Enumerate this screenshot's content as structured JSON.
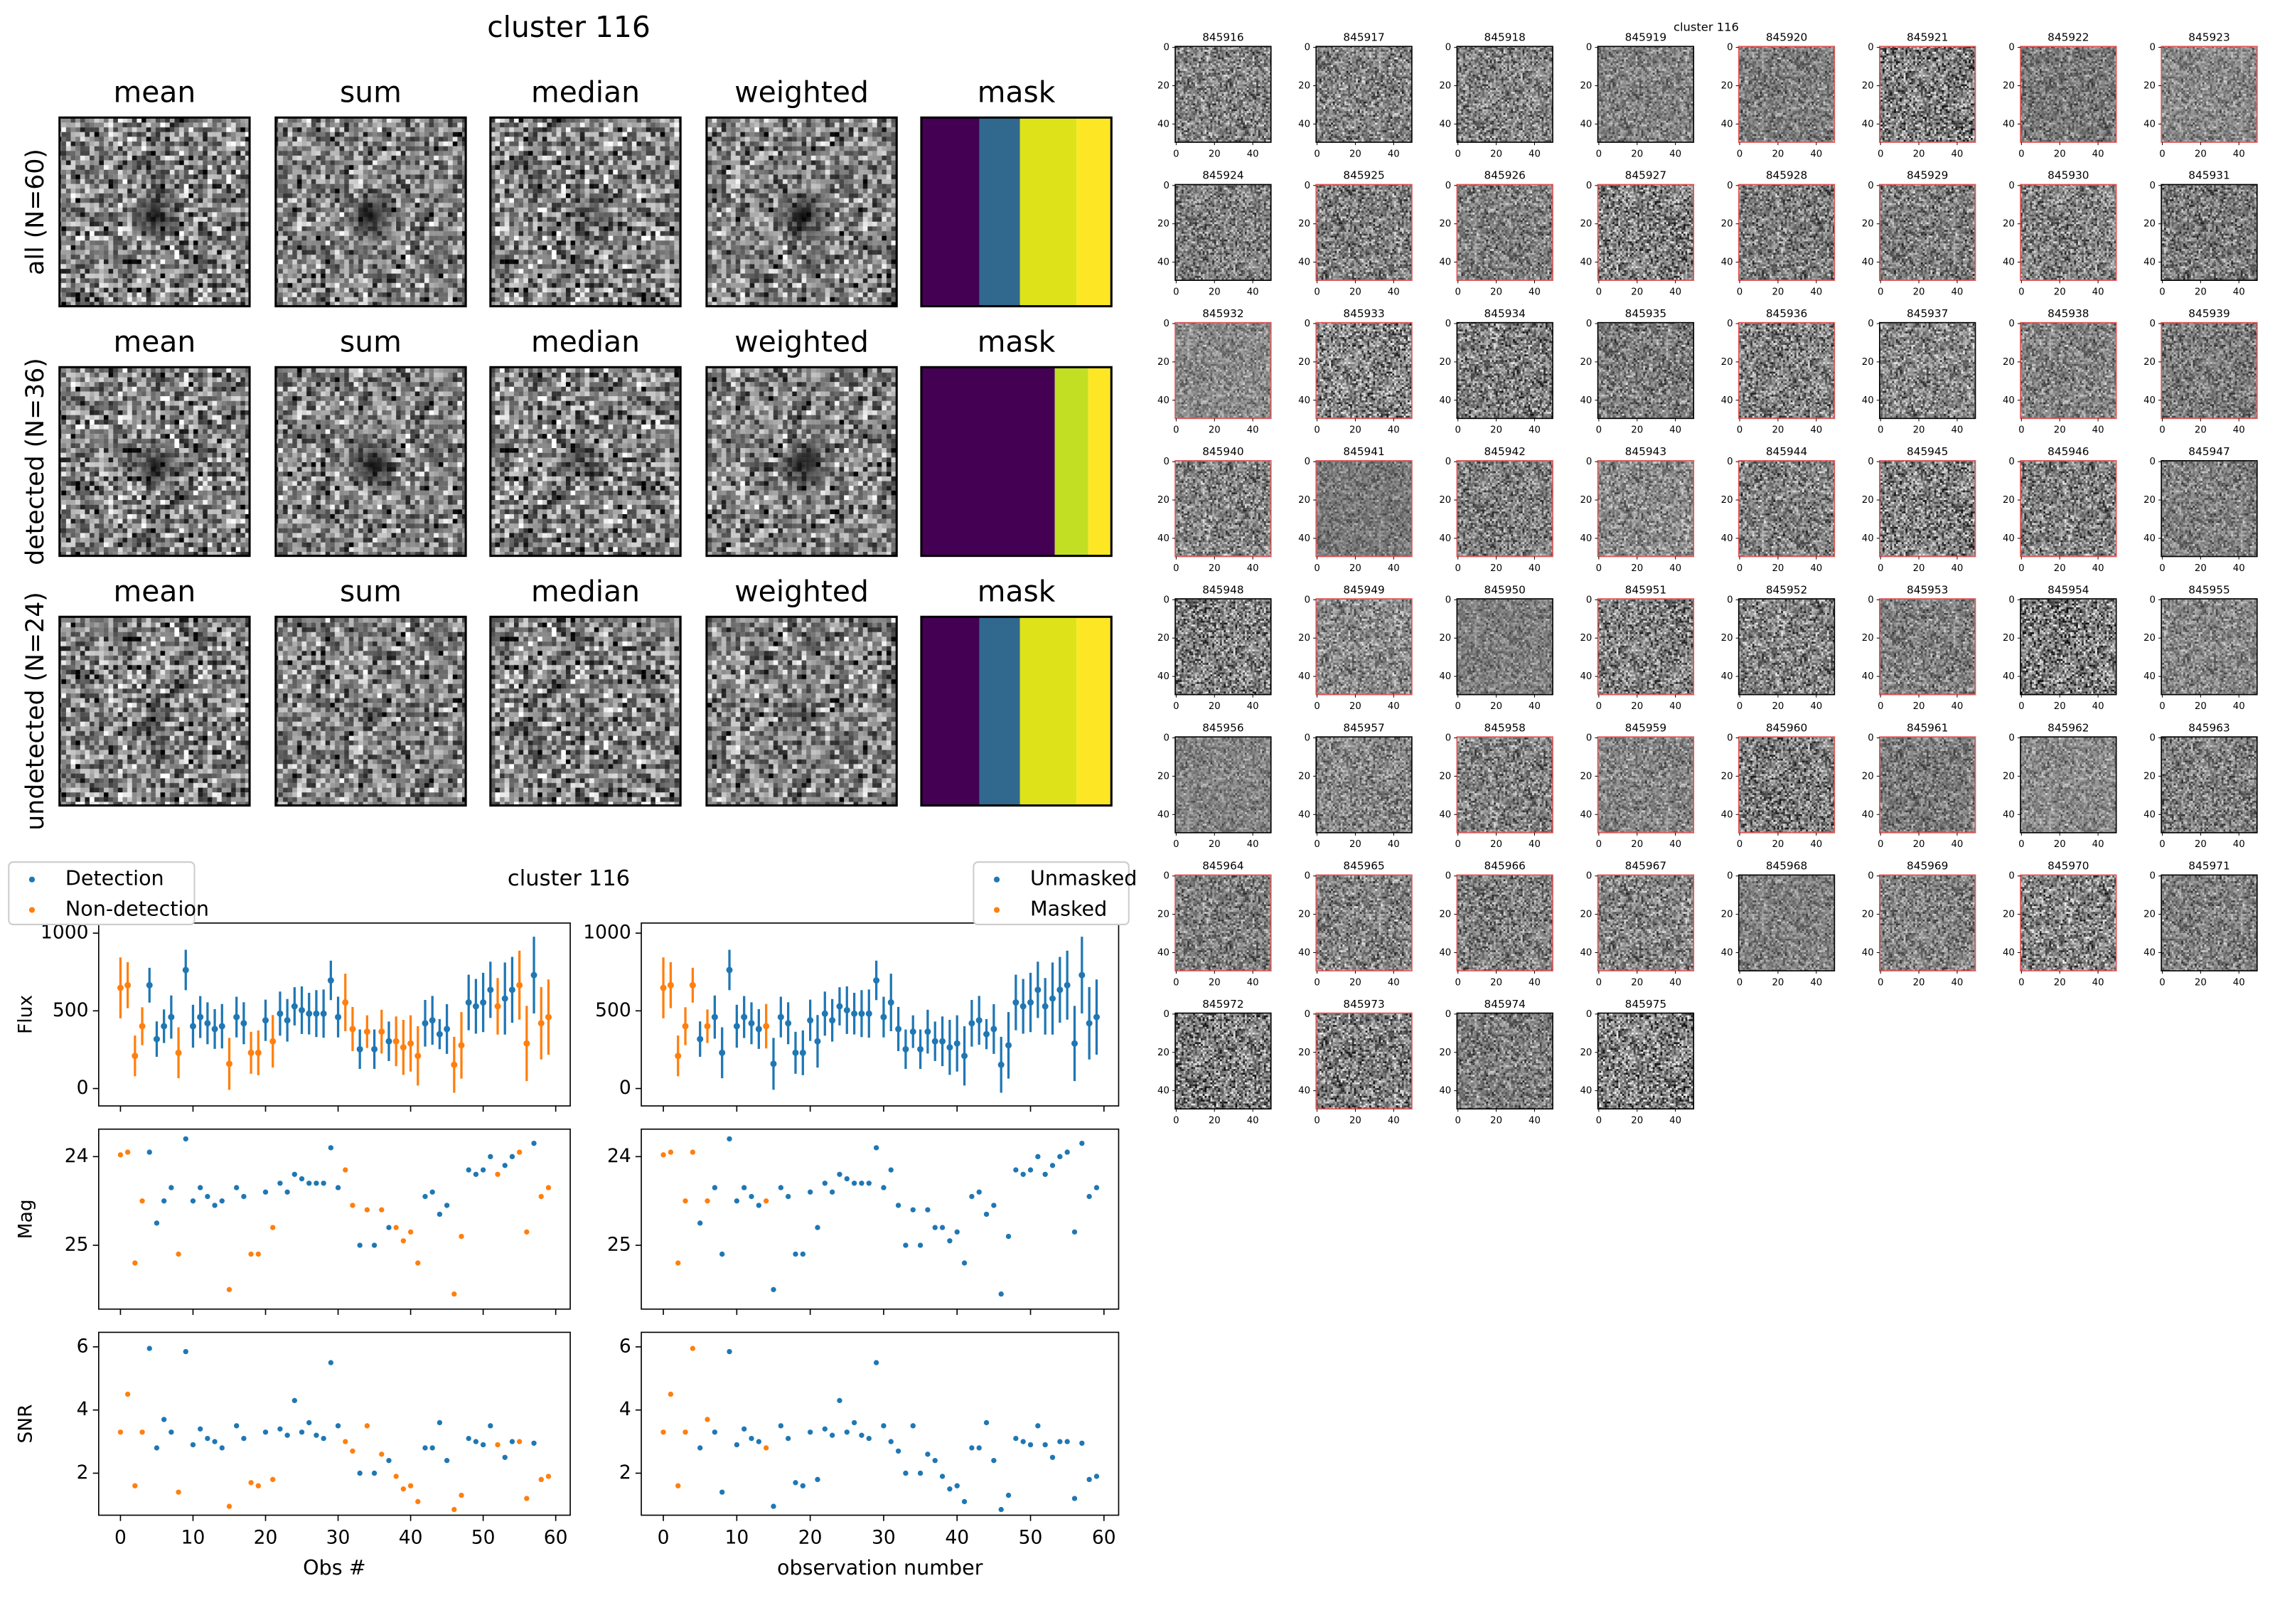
{
  "chart_data": [
    {
      "type": "image_grid",
      "title": "cluster 116",
      "columns": [
        "mean",
        "sum",
        "median",
        "weighted",
        "mask"
      ],
      "rows": [
        "all (N=60)",
        "detected (N=36)",
        "undetected (N=24)"
      ]
    },
    {
      "type": "errorbar",
      "title": "cluster 116",
      "x": [
        0,
        1,
        2,
        3,
        4,
        5,
        6,
        7,
        8,
        9,
        10,
        11,
        12,
        13,
        14,
        15,
        16,
        17,
        18,
        19,
        20,
        21,
        22,
        23,
        24,
        25,
        26,
        27,
        28,
        29,
        30,
        31,
        32,
        33,
        34,
        35,
        36,
        37,
        38,
        39,
        40,
        41,
        42,
        43,
        44,
        45,
        46,
        47,
        48,
        49,
        50,
        51,
        52,
        53,
        54,
        55,
        56,
        57,
        58,
        59
      ],
      "flux": [
        648,
        665,
        210,
        401,
        665,
        318,
        401,
        460,
        230,
        763,
        401,
        460,
        420,
        383,
        401,
        159,
        460,
        420,
        230,
        230,
        439,
        304,
        482,
        439,
        529,
        504,
        482,
        482,
        482,
        696,
        460,
        554,
        383,
        253,
        366,
        253,
        366,
        304,
        304,
        265,
        290,
        210,
        420,
        439,
        350,
        383,
        153,
        278,
        554,
        529,
        554,
        635,
        529,
        579,
        635,
        665,
        290,
        730,
        420,
        460
      ],
      "flux_err": [
        196,
        148,
        131,
        122,
        112,
        114,
        108,
        139,
        164,
        130,
        138,
        135,
        135,
        128,
        143,
        167,
        131,
        135,
        135,
        144,
        133,
        169,
        142,
        137,
        123,
        153,
        134,
        151,
        155,
        127,
        131,
        185,
        142,
        127,
        105,
        127,
        141,
        127,
        160,
        177,
        181,
        191,
        150,
        157,
        97,
        160,
        180,
        214,
        179,
        176,
        191,
        181,
        182,
        232,
        212,
        222,
        242,
        247,
        233,
        242
      ],
      "mag": [
        23.98,
        23.95,
        25.2,
        24.5,
        23.95,
        24.75,
        24.5,
        24.35,
        25.1,
        23.8,
        24.5,
        24.35,
        24.45,
        24.55,
        24.5,
        25.5,
        24.35,
        24.45,
        25.1,
        25.1,
        24.4,
        24.8,
        24.3,
        24.4,
        24.2,
        24.25,
        24.3,
        24.3,
        24.3,
        23.9,
        24.35,
        24.15,
        24.55,
        25.0,
        24.6,
        25.0,
        24.6,
        24.8,
        24.8,
        24.95,
        24.85,
        25.2,
        24.45,
        24.4,
        24.65,
        24.55,
        25.55,
        24.9,
        24.15,
        24.2,
        24.15,
        24.0,
        24.2,
        24.1,
        24.0,
        23.95,
        24.85,
        23.85,
        24.45,
        24.35
      ],
      "snr": [
        3.3,
        4.5,
        1.6,
        3.3,
        5.95,
        2.8,
        3.7,
        3.3,
        1.4,
        5.85,
        2.9,
        3.4,
        3.1,
        3.0,
        2.8,
        0.95,
        3.5,
        3.1,
        1.7,
        1.6,
        3.3,
        1.8,
        3.4,
        3.2,
        4.3,
        3.3,
        3.6,
        3.2,
        3.1,
        5.5,
        3.5,
        3.0,
        2.7,
        2.0,
        3.5,
        2.0,
        2.6,
        2.4,
        1.9,
        1.5,
        1.6,
        1.1,
        2.8,
        2.8,
        3.6,
        2.4,
        0.85,
        1.3,
        3.1,
        3.0,
        2.9,
        3.5,
        2.9,
        2.5,
        3.0,
        3.0,
        1.2,
        2.95,
        1.8,
        1.9
      ],
      "detected": [
        false,
        false,
        false,
        false,
        true,
        true,
        true,
        true,
        false,
        true,
        true,
        true,
        true,
        true,
        true,
        false,
        true,
        true,
        false,
        false,
        true,
        false,
        true,
        true,
        true,
        true,
        true,
        true,
        true,
        true,
        true,
        false,
        false,
        true,
        false,
        true,
        false,
        true,
        false,
        false,
        false,
        false,
        true,
        true,
        true,
        true,
        false,
        false,
        true,
        true,
        true,
        true,
        false,
        true,
        true,
        false,
        false,
        true,
        false,
        false
      ],
      "masked": [
        true,
        true,
        true,
        true,
        true,
        false,
        true,
        false,
        false,
        false,
        false,
        false,
        false,
        false,
        true,
        false,
        false,
        false,
        false,
        false,
        false,
        false,
        false,
        false,
        false,
        false,
        false,
        false,
        false,
        false,
        false,
        false,
        false,
        false,
        false,
        false,
        false,
        false,
        false,
        false,
        false,
        false,
        false,
        false,
        false,
        false,
        false,
        false,
        false,
        false,
        false,
        false,
        false,
        false,
        false,
        false,
        false,
        false,
        false,
        false
      ],
      "colors": [
        "#1f77b4",
        "#ff7f0e"
      ],
      "legend_left": [
        "Detection",
        "Non-detection"
      ],
      "legend_right": [
        "Unmasked",
        "Masked"
      ],
      "xlabels": [
        "Obs #",
        "observation number"
      ],
      "xlim": [
        -3,
        62
      ],
      "xticks": [
        0,
        10,
        20,
        30,
        40,
        50,
        60
      ],
      "rows": [
        {
          "ylabel": "Flux",
          "ylim": [
            -112,
            1065
          ],
          "yticks": [
            0,
            500,
            1000
          ]
        },
        {
          "ylabel": "Mag",
          "ylim": [
            25.72,
            23.69
          ],
          "yticks": [
            24,
            25
          ]
        },
        {
          "ylabel": "SNR",
          "ylim": [
            0.67,
            6.46
          ],
          "yticks": [
            2,
            4,
            6
          ]
        }
      ]
    },
    {
      "type": "cutout_grid",
      "title": "cluster 116",
      "ids": [
        845916,
        845917,
        845918,
        845919,
        845920,
        845921,
        845922,
        845923,
        845924,
        845925,
        845926,
        845927,
        845928,
        845929,
        845930,
        845931,
        845932,
        845933,
        845934,
        845935,
        845936,
        845937,
        845938,
        845939,
        845940,
        845941,
        845942,
        845943,
        845944,
        845945,
        845946,
        845947,
        845948,
        845949,
        845950,
        845951,
        845952,
        845953,
        845954,
        845955,
        845956,
        845957,
        845958,
        845959,
        845960,
        845961,
        845962,
        845963,
        845964,
        845965,
        845966,
        845967,
        845968,
        845969,
        845970,
        845971,
        845972,
        845973,
        845974,
        845975
      ],
      "xlim": [
        -0.5,
        49.5
      ],
      "ylim": [
        49.5,
        -0.5
      ],
      "xticks": [
        0,
        20,
        40
      ],
      "yticks": [
        0,
        20,
        40
      ],
      "edge_colors": [
        "#000000",
        "#e05555"
      ]
    }
  ]
}
